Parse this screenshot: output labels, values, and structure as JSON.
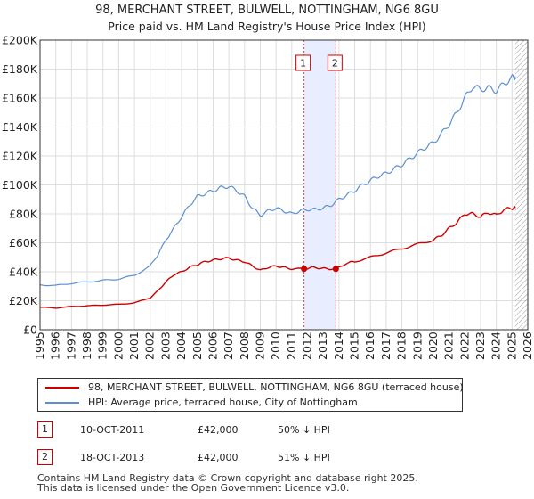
{
  "title_line1": "98, MERCHANT STREET, BULWELL, NOTTINGHAM, NG6 8GU",
  "title_line2": "Price paid vs. HM Land Registry's House Price Index (HPI)",
  "colors": {
    "property": "#cc0000",
    "hpi": "#5b8fd4",
    "shade": "#e8eeff",
    "grid": "#dddddd"
  },
  "chart_data": {
    "type": "line",
    "title": "98, MERCHANT STREET, BULWELL, NOTTINGHAM, NG6 8GU",
    "subtitle": "Price paid vs. HM Land Registry's House Price Index (HPI)",
    "xlabel": "",
    "ylabel": "",
    "xlim": [
      1995,
      2026
    ],
    "ylim": [
      0,
      200000
    ],
    "y_ticks": [
      0,
      20000,
      40000,
      60000,
      80000,
      100000,
      120000,
      140000,
      160000,
      180000,
      200000
    ],
    "y_tick_labels": [
      "£0",
      "£20K",
      "£40K",
      "£60K",
      "£80K",
      "£100K",
      "£120K",
      "£140K",
      "£160K",
      "£180K",
      "£200K"
    ],
    "x_ticks": [
      1995,
      1996,
      1997,
      1998,
      1999,
      2000,
      2001,
      2002,
      2003,
      2004,
      2005,
      2006,
      2007,
      2008,
      2009,
      2010,
      2011,
      2012,
      2013,
      2014,
      2015,
      2016,
      2017,
      2018,
      2019,
      2020,
      2021,
      2022,
      2023,
      2024,
      2025,
      2026
    ],
    "grid": true,
    "shaded_band": [
      2011.78,
      2013.8
    ],
    "future_hatch_from": 2025.2,
    "series": [
      {
        "name": "98, MERCHANT STREET, BULWELL, NOTTINGHAM, NG6 8GU (terraced house)",
        "x": [
          1995,
          1996,
          1997,
          1998,
          1999,
          2000,
          2001,
          2002,
          2002.5,
          2003,
          2003.5,
          2004,
          2004.5,
          2005,
          2005.5,
          2006,
          2006.5,
          2007,
          2007.5,
          2008,
          2008.5,
          2009,
          2009.5,
          2010,
          2010.5,
          2011,
          2011.78,
          2012.3,
          2012.8,
          2013.3,
          2013.8,
          2014.5,
          2015,
          2016,
          2017,
          2018,
          2019,
          2020,
          2020.5,
          2021,
          2021.5,
          2022,
          2022.5,
          2023,
          2023.5,
          2024,
          2024.5,
          2025,
          2025.2
        ],
        "values": [
          15500,
          15000,
          16000,
          16500,
          17000,
          17500,
          18500,
          22000,
          27000,
          33000,
          38000,
          40000,
          43000,
          45000,
          47000,
          48000,
          49000,
          49500,
          48000,
          47000,
          44000,
          41000,
          43000,
          44000,
          43000,
          42000,
          42000,
          43000,
          42500,
          42000,
          42000,
          46000,
          47000,
          50000,
          53000,
          56000,
          59000,
          62000,
          65000,
          70000,
          74000,
          80000,
          80000,
          78000,
          81000,
          79000,
          83000,
          84000,
          84000
        ]
      },
      {
        "name": "HPI: Average price, terraced house, City of Nottingham",
        "x": [
          1995,
          1996,
          1997,
          1998,
          1999,
          2000,
          2001,
          2002,
          2002.5,
          2003,
          2003.5,
          2004,
          2004.5,
          2005,
          2005.5,
          2006,
          2006.5,
          2007,
          2007.5,
          2008,
          2008.5,
          2009,
          2009.5,
          2010,
          2010.5,
          2011,
          2011.5,
          2012,
          2012.5,
          2013,
          2013.5,
          2014,
          2014.5,
          2015,
          2015.5,
          2016,
          2016.5,
          2017,
          2017.5,
          2018,
          2018.5,
          2019,
          2019.5,
          2020,
          2020.5,
          2021,
          2021.5,
          2022,
          2022.5,
          2023,
          2023.5,
          2024,
          2024.5,
          2025,
          2025.2
        ],
        "values": [
          31000,
          30500,
          32000,
          33000,
          34000,
          35000,
          37500,
          44000,
          52000,
          62000,
          70000,
          78000,
          86000,
          92000,
          94000,
          96000,
          98000,
          99000,
          96000,
          92000,
          84000,
          79000,
          82000,
          84000,
          82000,
          80000,
          82000,
          83000,
          83000,
          84000,
          86000,
          90000,
          93000,
          96000,
          100000,
          103000,
          106000,
          108000,
          111000,
          114000,
          118000,
          122000,
          126000,
          129000,
          135000,
          142000,
          150000,
          160000,
          168000,
          166000,
          167000,
          165000,
          170000,
          174000,
          175000
        ]
      }
    ],
    "sale_markers": [
      {
        "label": "1",
        "x": 2011.78,
        "value": 42000
      },
      {
        "label": "2",
        "x": 2013.8,
        "value": 42000
      }
    ]
  },
  "legend": {
    "property_label": "98, MERCHANT STREET, BULWELL, NOTTINGHAM, NG6 8GU (terraced house)",
    "hpi_label": "HPI: Average price, terraced house, City of Nottingham"
  },
  "sales": [
    {
      "num": "1",
      "date": "10-OCT-2011",
      "price": "£42,000",
      "vs_hpi": "50% ↓ HPI"
    },
    {
      "num": "2",
      "date": "18-OCT-2013",
      "price": "£42,000",
      "vs_hpi": "51% ↓ HPI"
    }
  ],
  "footer_line1": "Contains HM Land Registry data © Crown copyright and database right 2025.",
  "footer_line2": "This data is licensed under the Open Government Licence v3.0."
}
